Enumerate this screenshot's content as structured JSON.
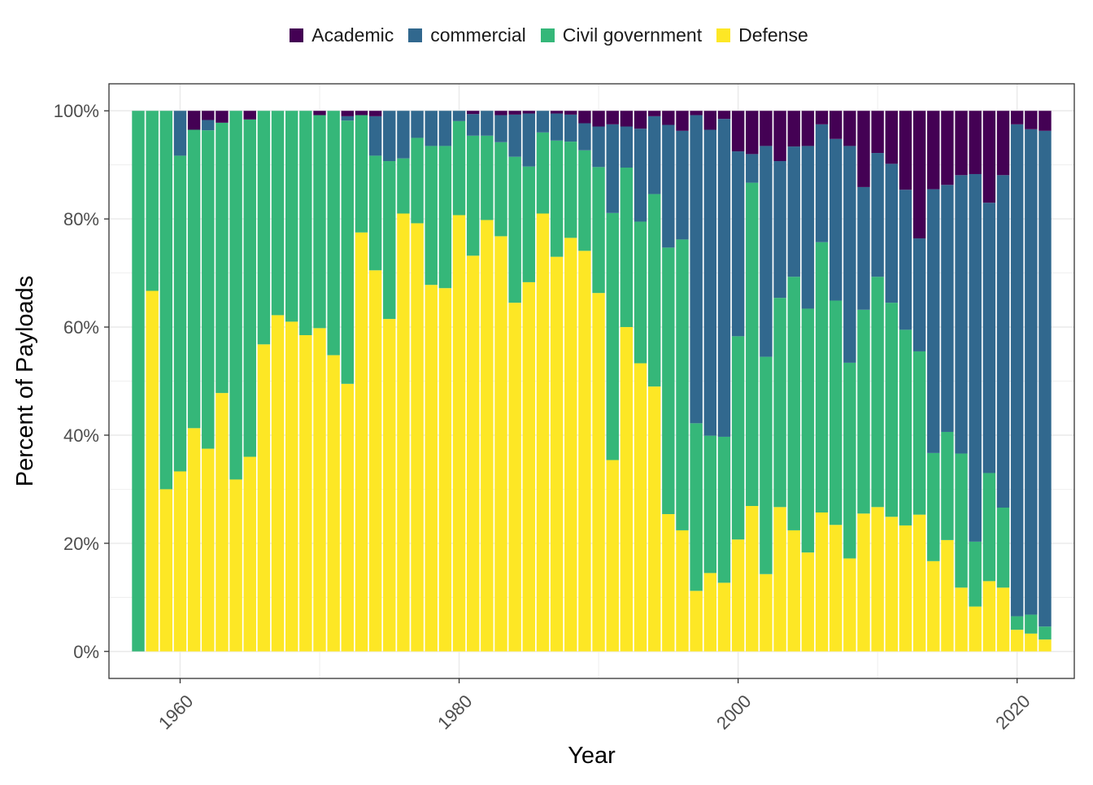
{
  "chart_data": {
    "type": "bar",
    "stacked": true,
    "percent": true,
    "xlabel": "Year",
    "ylabel": "Percent of Payloads",
    "xlim": [
      1954.9,
      2024.1
    ],
    "ylim": [
      -0.05,
      1.05
    ],
    "x_ticks": [
      1960,
      1980,
      2000,
      2020
    ],
    "x_tick_labels": [
      "1960",
      "1980",
      "2000",
      "2020"
    ],
    "y_ticks": [
      0,
      0.2,
      0.4,
      0.6,
      0.8,
      1.0
    ],
    "y_tick_labels": [
      "0%",
      "20%",
      "40%",
      "60%",
      "80%",
      "100%"
    ],
    "legend_position": "top",
    "grid": true,
    "series_order_bottom_to_top": [
      "Defense",
      "Civil government",
      "commercial",
      "Academic"
    ],
    "legend": [
      {
        "name": "Academic",
        "color": "#440154"
      },
      {
        "name": "commercial",
        "color": "#31688E"
      },
      {
        "name": "Civil government",
        "color": "#35B779"
      },
      {
        "name": "Defense",
        "color": "#FDE725"
      }
    ],
    "x": [
      1957,
      1958,
      1959,
      1960,
      1961,
      1962,
      1963,
      1964,
      1965,
      1966,
      1967,
      1968,
      1969,
      1970,
      1971,
      1972,
      1973,
      1974,
      1975,
      1976,
      1977,
      1978,
      1979,
      1980,
      1981,
      1982,
      1983,
      1984,
      1985,
      1986,
      1987,
      1988,
      1989,
      1990,
      1991,
      1992,
      1993,
      1994,
      1995,
      1996,
      1997,
      1998,
      1999,
      2000,
      2001,
      2002,
      2003,
      2004,
      2005,
      2006,
      2007,
      2008,
      2009,
      2010,
      2011,
      2012,
      2013,
      2014,
      2015,
      2016,
      2017,
      2018,
      2019,
      2020,
      2021,
      2022
    ],
    "series": [
      {
        "name": "Defense",
        "color": "#FDE725",
        "values": [
          0,
          0.667,
          0.3,
          0.333,
          0.413,
          0.375,
          0.478,
          0.318,
          0.36,
          0.568,
          0.622,
          0.61,
          0.585,
          0.598,
          0.548,
          0.495,
          0.775,
          0.705,
          0.615,
          0.81,
          0.792,
          0.678,
          0.672,
          0.807,
          0.732,
          0.798,
          0.768,
          0.645,
          0.683,
          0.81,
          0.73,
          0.765,
          0.741,
          0.663,
          0.354,
          0.6,
          0.533,
          0.49,
          0.254,
          0.224,
          0.112,
          0.145,
          0.127,
          0.207,
          0.269,
          0.143,
          0.267,
          0.224,
          0.183,
          0.257,
          0.234,
          0.172,
          0.255,
          0.267,
          0.249,
          0.233,
          0.253,
          0.167,
          0.206,
          0.118,
          0.083,
          0.13,
          0.118,
          0.04,
          0.033,
          0.022
        ]
      },
      {
        "name": "Civil government",
        "color": "#35B779",
        "values": [
          1.0,
          0.333,
          0.7,
          0.584,
          0.552,
          0.589,
          0.5,
          0.682,
          0.624,
          0.432,
          0.378,
          0.39,
          0.415,
          0.394,
          0.452,
          0.487,
          0.217,
          0.212,
          0.292,
          0.102,
          0.158,
          0.257,
          0.263,
          0.174,
          0.222,
          0.156,
          0.174,
          0.27,
          0.214,
          0.15,
          0.215,
          0.178,
          0.186,
          0.233,
          0.457,
          0.295,
          0.262,
          0.356,
          0.493,
          0.538,
          0.31,
          0.254,
          0.27,
          0.376,
          0.598,
          0.402,
          0.387,
          0.469,
          0.451,
          0.5,
          0.415,
          0.362,
          0.377,
          0.426,
          0.396,
          0.362,
          0.302,
          0.2,
          0.2,
          0.248,
          0.12,
          0.2,
          0.148,
          0.025,
          0.035,
          0.024
        ]
      },
      {
        "name": "commercial",
        "color": "#31688E",
        "values": [
          0,
          0,
          0,
          0.083,
          0,
          0.019,
          0,
          0,
          0,
          0,
          0,
          0,
          0,
          0,
          0,
          0.008,
          0,
          0.073,
          0.093,
          0.088,
          0.05,
          0.065,
          0.065,
          0.019,
          0.04,
          0.046,
          0.05,
          0.078,
          0.098,
          0.04,
          0.05,
          0.05,
          0.05,
          0.075,
          0.164,
          0.076,
          0.172,
          0.144,
          0.227,
          0.201,
          0.57,
          0.566,
          0.588,
          0.342,
          0.053,
          0.39,
          0.253,
          0.241,
          0.301,
          0.218,
          0.299,
          0.401,
          0.227,
          0.229,
          0.257,
          0.259,
          0.209,
          0.488,
          0.457,
          0.515,
          0.68,
          0.5,
          0.615,
          0.91,
          0.898,
          0.917
        ]
      },
      {
        "name": "Academic",
        "color": "#440154",
        "values": [
          0,
          0,
          0,
          0,
          0.035,
          0.017,
          0.022,
          0,
          0.016,
          0,
          0,
          0,
          0,
          0.008,
          0,
          0.01,
          0.008,
          0.01,
          0,
          0,
          0,
          0,
          0,
          0,
          0.006,
          0,
          0.008,
          0.007,
          0.005,
          0,
          0.005,
          0.007,
          0.023,
          0.029,
          0.025,
          0.029,
          0.033,
          0.01,
          0.026,
          0.037,
          0.008,
          0.035,
          0.015,
          0.075,
          0.08,
          0.065,
          0.093,
          0.066,
          0.065,
          0.025,
          0.052,
          0.065,
          0.141,
          0.078,
          0.098,
          0.146,
          0.236,
          0.145,
          0.137,
          0.119,
          0.117,
          0.17,
          0.119,
          0.025,
          0.034,
          0.037
        ]
      }
    ]
  }
}
